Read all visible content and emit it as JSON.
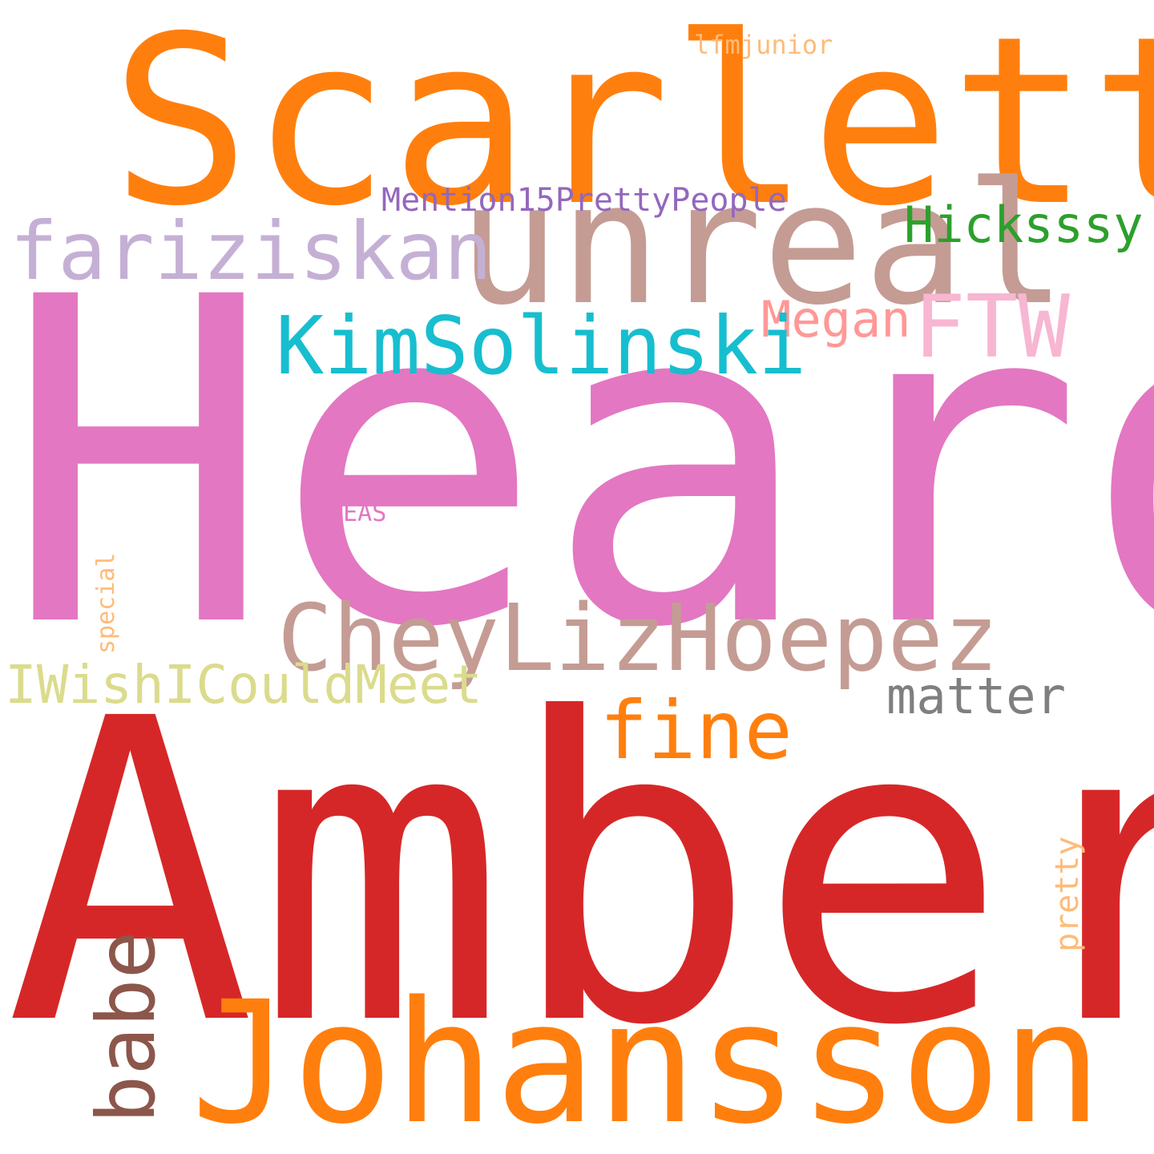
{
  "words": {
    "scarlett": {
      "text": "Scarlett",
      "color": "#ff7f0e"
    },
    "lfmjunior": {
      "text": "lfmjunior",
      "color": "#ffbb78"
    },
    "mention": {
      "text": "Mention15PrettyPeople",
      "color": "#9467bd"
    },
    "unreal": {
      "text": "unreal",
      "color": "#c49c94"
    },
    "fariziskan": {
      "text": "fariziskan",
      "color": "#c5b0d5"
    },
    "hicksssy": {
      "text": "Hicksssy",
      "color": "#2ca02c"
    },
    "heard": {
      "text": "Heard",
      "color": "#e377c2"
    },
    "megan": {
      "text": "Megan",
      "color": "#ff9896"
    },
    "ftw": {
      "text": "FTW",
      "color": "#f7b6d2"
    },
    "kimsolinski": {
      "text": "KimSolinski",
      "color": "#17becf"
    },
    "hueas": {
      "text": "HUEAS",
      "color": "#e377c2"
    },
    "special": {
      "text": "special",
      "color": "#ffbb78"
    },
    "cheylizhoepez": {
      "text": "CheyLizHoepez",
      "color": "#c49c94"
    },
    "iwish": {
      "text": "IWishICouldMeet",
      "color": "#dbdb8d"
    },
    "matter": {
      "text": "matter",
      "color": "#7f7f7f"
    },
    "fine": {
      "text": "fine",
      "color": "#ff7f0e"
    },
    "amber": {
      "text": "Amber",
      "color": "#d62728"
    },
    "pretty": {
      "text": "pretty",
      "color": "#ffbb78"
    },
    "babe": {
      "text": "babe",
      "color": "#8c564b"
    },
    "johansson": {
      "text": "Johansson",
      "color": "#ff7f0e"
    }
  }
}
